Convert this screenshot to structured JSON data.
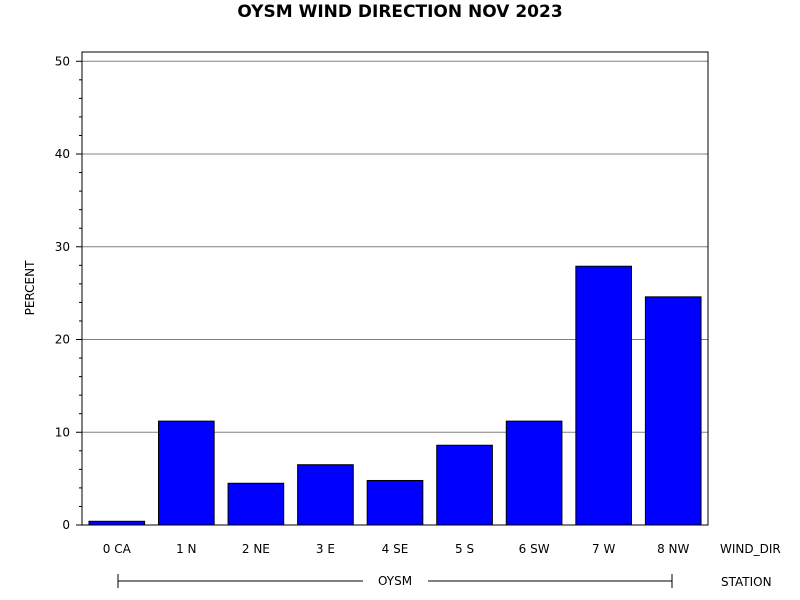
{
  "chart_data": {
    "type": "bar",
    "title": "OYSM WIND DIRECTION NOV 2023",
    "ylabel": "PERCENT",
    "xlabel": "WIND_DIR",
    "group_label": "STATION",
    "group_value": "OYSM",
    "categories": [
      "0 CA",
      "1 N",
      "2 NE",
      "3 E",
      "4 SE",
      "5 S",
      "6 SW",
      "7 W",
      "8 NW"
    ],
    "values": [
      0.4,
      11.2,
      4.5,
      6.5,
      4.8,
      8.6,
      11.2,
      27.9,
      24.6
    ],
    "ylim": [
      0,
      51
    ],
    "yticks": [
      0,
      10,
      20,
      30,
      40,
      50
    ],
    "grid": true,
    "bar_color": "#0000ff",
    "bar_edge_color": "#000000"
  }
}
